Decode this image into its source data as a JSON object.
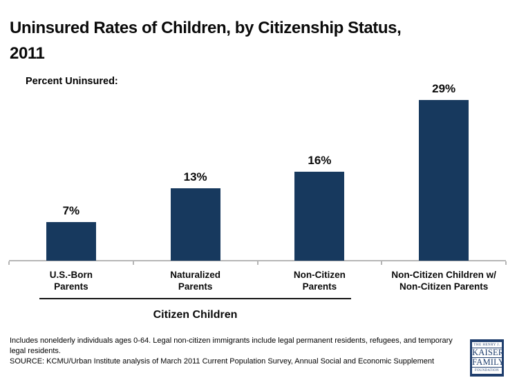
{
  "title": "Uninsured Rates of Children, by Citizenship Status,\n2011",
  "axis_label": "Percent Uninsured:",
  "chart_data": {
    "type": "bar",
    "categories": [
      "U.S.-Born\nParents",
      "Naturalized\nParents",
      "Non-Citizen\nParents",
      "Non-Citizen Children w/\nNon-Citizen Parents"
    ],
    "values": [
      7,
      13,
      16,
      29
    ],
    "value_labels": [
      "7%",
      "13%",
      "16%",
      "29%"
    ],
    "title": "Uninsured Rates of Children, by Citizenship Status, 2011",
    "ylabel": "Percent Uninsured:",
    "ylim": [
      0,
      32
    ],
    "grid": false,
    "legend": false,
    "bar_color": "#17395E",
    "axis_color": "#b5b5b5",
    "group_annotation": {
      "label": "Citizen Children",
      "covers": [
        "U.S.-Born Parents",
        "Naturalized Parents",
        "Non-Citizen Parents"
      ]
    }
  },
  "footnotes": {
    "note": "Includes nonelderly individuals ages 0-64. Legal non-citizen immigrants include legal permanent residents, refugees, and temporary legal residents.",
    "source": "SOURCE: KCMU/Urban Institute analysis of March 2011 Current Population Survey, Annual Social and Economic Supplement"
  },
  "logo": {
    "line1": "THE HENRY J.",
    "line2": "KAISER",
    "line3": "FAMILY",
    "line4": "FOUNDATION",
    "color": "#1F3E6D"
  }
}
